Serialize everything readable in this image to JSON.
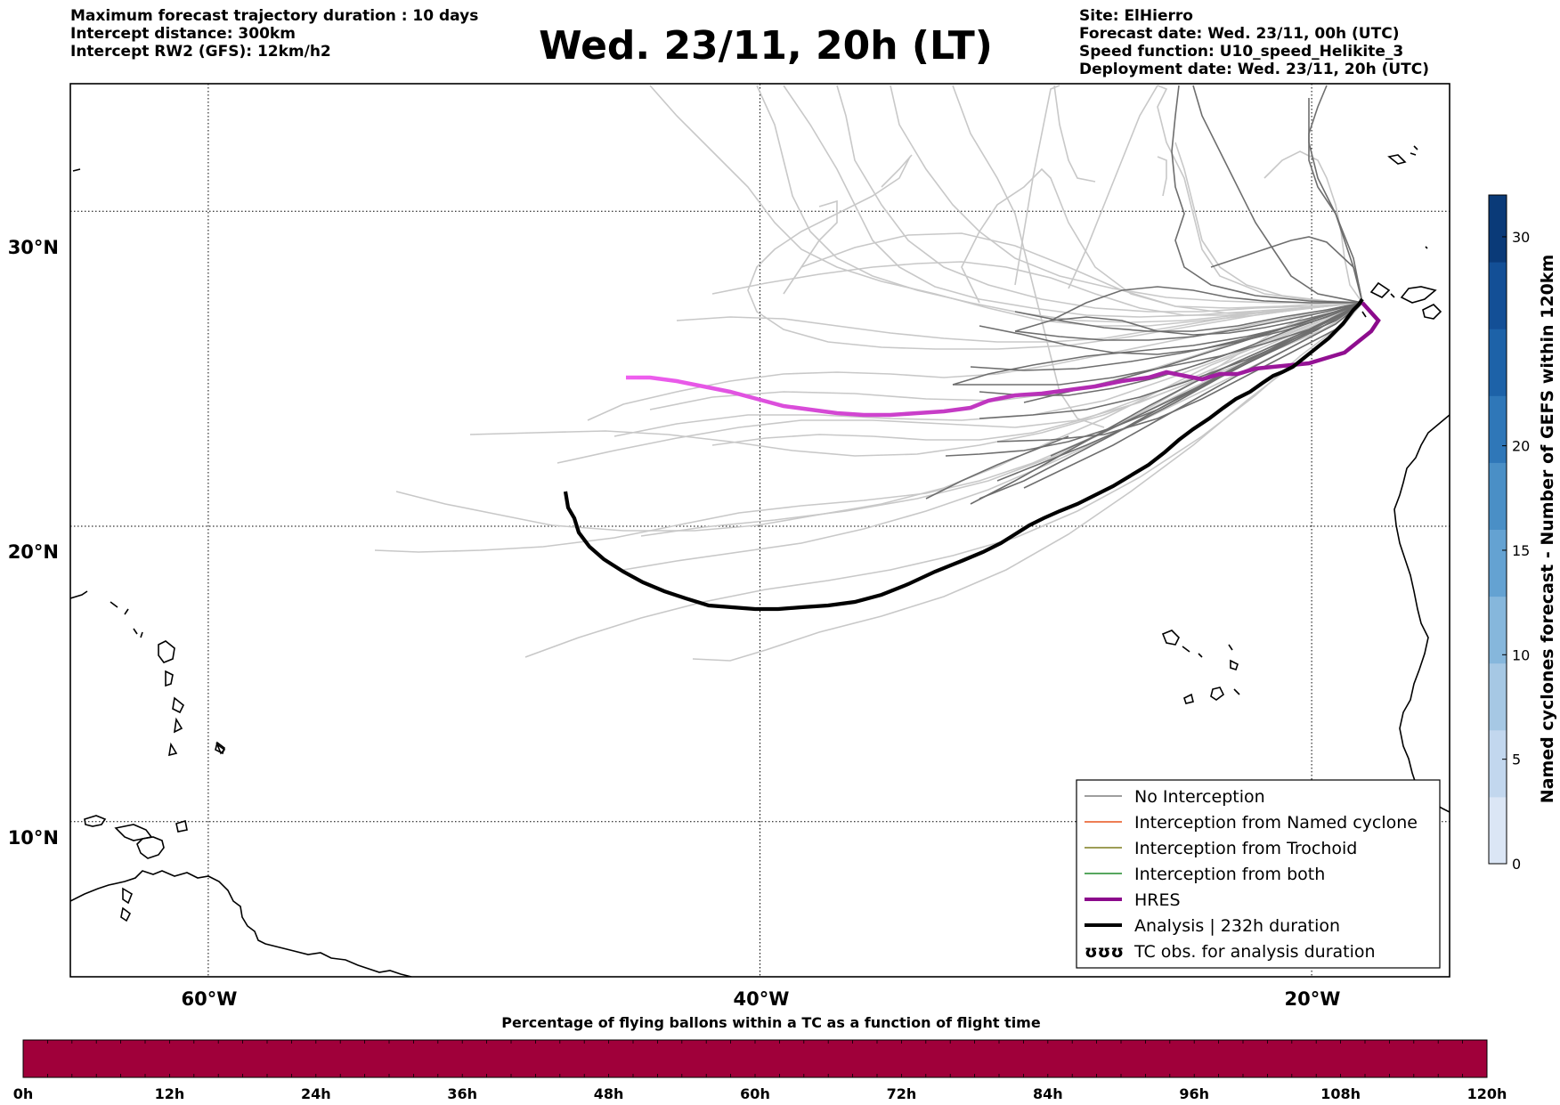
{
  "header": {
    "left_lines": [
      "Maximum forecast trajectory duration : 10 days",
      "Intercept distance: 300km",
      "Intercept RW2 (GFS):  12km/h2"
    ],
    "title": "Wed. 23/11, 20h (LT)",
    "right_lines": [
      "Site: ElHierro",
      "Forecast date: Wed. 23/11, 00h (UTC)",
      "Speed function: U10_speed_Helikite_3",
      "Deployment date: Wed. 23/11, 20h (UTC)"
    ]
  },
  "map": {
    "lat_labels": [
      "30°N",
      "20°N",
      "10°N"
    ],
    "lon_labels": [
      "60°W",
      "40°W",
      "20°W"
    ],
    "lat_values": [
      30,
      20,
      10
    ],
    "lon_values": [
      -60,
      -40,
      -20
    ],
    "extent": {
      "lon_min": -65,
      "lon_max": -15,
      "lat_min": 4.6,
      "lat_max": 33.8
    },
    "gridlines": "dotted"
  },
  "legend": {
    "items": [
      {
        "label": "No Interception",
        "color": "#7f7f7f",
        "style": "thin-line"
      },
      {
        "label": "Interception from Named cyclone",
        "color": "#e8541c",
        "style": "thin-line"
      },
      {
        "label": "Interception from Trochoid",
        "color": "#7d7d1e",
        "style": "thin-line"
      },
      {
        "label": "Interception from both",
        "color": "#1e8a2a",
        "style": "thin-line"
      },
      {
        "label": "HRES",
        "color": "#8b0a8b",
        "style": "thick-line"
      },
      {
        "label": "Analysis | 232h duration",
        "color": "#000000",
        "style": "thick-line"
      },
      {
        "label": "TC obs. for analysis duration",
        "color": "#000000",
        "style": "cyclone-symbols",
        "symbol": "ʊʊʊ"
      }
    ]
  },
  "colorbar": {
    "title": "Named cyclones forecast - Number of GEFS within 120km",
    "ticks": [
      "0",
      "5",
      "10",
      "15",
      "20",
      "30"
    ],
    "tick_values": [
      0,
      5,
      10,
      15,
      20,
      30
    ],
    "max": 32,
    "colors": [
      "#dbe6f5",
      "#c2d7ee",
      "#a6c8e4",
      "#86b7dc",
      "#64a2d2",
      "#4a8fc6",
      "#2f77b8",
      "#1d62a8",
      "#134f96",
      "#0a3a78"
    ]
  },
  "flight_bar": {
    "title": "Percentage of flying ballons within a TC as a function of flight time",
    "ticks": [
      "0h",
      "12h",
      "24h",
      "36h",
      "48h",
      "60h",
      "72h",
      "84h",
      "96h",
      "108h",
      "120h"
    ],
    "fill_color": "#a0003a"
  },
  "colors": {
    "ensemble_light": "#c8c8c8",
    "ensemble_dark": "#6e6e6e",
    "hres_early": "#f060f0",
    "hres_late": "#8b0a8b",
    "analysis": "#000000",
    "coast": "#000000"
  }
}
